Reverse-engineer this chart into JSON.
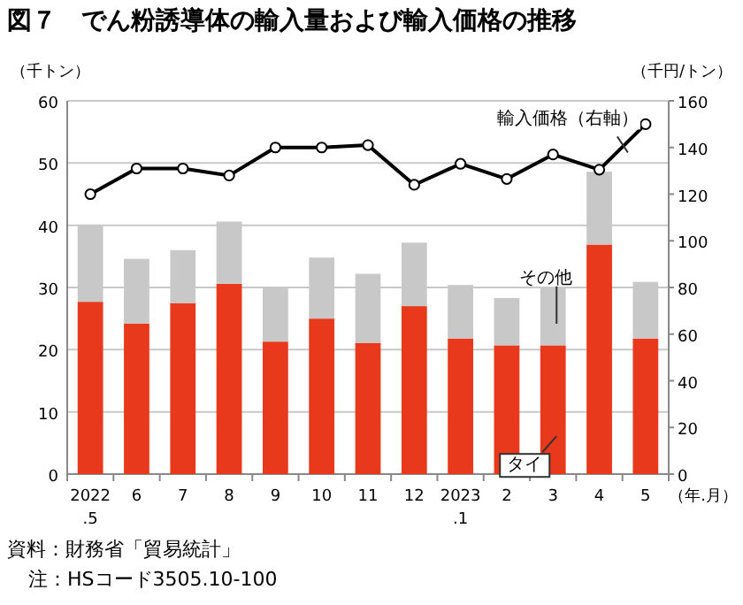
{
  "chart_data": {
    "type": "bar",
    "title": "図７　でん粉誘導体の輸入量および輸入価格の推移",
    "categories": [
      "2022\n.5",
      "6",
      "7",
      "8",
      "9",
      "10",
      "11",
      "12",
      "2023\n.1",
      "2",
      "3",
      "4",
      "5"
    ],
    "stacked": true,
    "series": [
      {
        "name": "タイ",
        "color": "#e8391c",
        "values": [
          27.7,
          24.2,
          27.5,
          30.6,
          21.3,
          25.0,
          21.1,
          27.0,
          21.8,
          20.7,
          20.7,
          36.9,
          21.8
        ]
      },
      {
        "name": "その他",
        "color": "#c8c8c8",
        "values": [
          12.3,
          10.4,
          8.5,
          10.0,
          8.7,
          9.8,
          11.1,
          10.2,
          8.6,
          7.6,
          9.2,
          11.7,
          9.1
        ]
      },
      {
        "name": "輸入価格（右軸）",
        "type": "line",
        "axis": "y2",
        "color": "#000000",
        "marker": "circle",
        "values": [
          120,
          131,
          131,
          128,
          140,
          140,
          141,
          124,
          133,
          126.5,
          137,
          130.5,
          150
        ]
      }
    ],
    "ylim": [
      0,
      60
    ],
    "yticks": [
      0,
      10,
      20,
      30,
      40,
      50,
      60
    ],
    "y2lim": [
      0,
      160
    ],
    "y2ticks": [
      0,
      20,
      40,
      60,
      80,
      100,
      120,
      140,
      160
    ],
    "ylabel": "（千トン）",
    "y2label": "（千円/トン）",
    "xlabel": "（年.月）",
    "grid": "y",
    "annotations": [
      "資料：財務省「貿易統計」",
      "注：HSコード3505.10-100"
    ]
  }
}
